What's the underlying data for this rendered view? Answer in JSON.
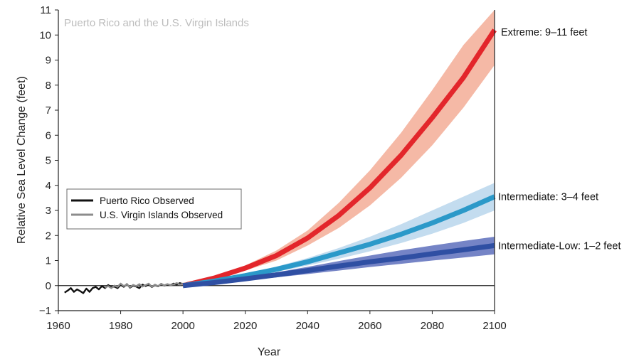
{
  "chart_data": {
    "type": "line",
    "inset_title": "Puerto Rico and the U.S. Virgin Islands",
    "xlabel": "Year",
    "ylabel": "Relative Sea Level Change (feet)",
    "xlim": [
      1960,
      2100
    ],
    "ylim": [
      -1,
      11
    ],
    "x_ticks": [
      1960,
      1980,
      2000,
      2020,
      2040,
      2060,
      2080,
      2100
    ],
    "y_ticks": [
      -1,
      0,
      1,
      2,
      3,
      4,
      5,
      6,
      7,
      8,
      9,
      10,
      11
    ],
    "grid": false,
    "zero_line": true,
    "legend": {
      "position": "left-center",
      "entries": [
        {
          "label": "Puerto Rico Observed",
          "color": "#111111"
        },
        {
          "label": "U.S. Virgin Islands Observed",
          "color": "#8c8c8c"
        }
      ]
    },
    "scenarios": [
      {
        "label": "Extreme: 9–11 feet",
        "line_color": "#e3262b",
        "band_color": "#f5b9a6",
        "x": [
          2000,
          2010,
          2020,
          2030,
          2040,
          2050,
          2060,
          2070,
          2080,
          2090,
          2100
        ],
        "y": [
          0.0,
          0.3,
          0.7,
          1.2,
          1.9,
          2.8,
          3.9,
          5.2,
          6.7,
          8.3,
          10.2
        ],
        "y_low": [
          0.0,
          0.25,
          0.6,
          1.0,
          1.6,
          2.3,
          3.2,
          4.3,
          5.6,
          7.1,
          8.8
        ],
        "y_high": [
          0.0,
          0.35,
          0.8,
          1.4,
          2.2,
          3.3,
          4.6,
          6.1,
          7.8,
          9.6,
          11.0
        ]
      },
      {
        "label": "Intermediate: 3–4 feet",
        "line_color": "#2b99c9",
        "band_color": "#c3dcef",
        "x": [
          2000,
          2010,
          2020,
          2030,
          2040,
          2050,
          2060,
          2070,
          2080,
          2090,
          2100
        ],
        "y": [
          0.0,
          0.18,
          0.4,
          0.65,
          0.95,
          1.3,
          1.65,
          2.05,
          2.5,
          3.0,
          3.55
        ],
        "y_low": [
          0.0,
          0.15,
          0.33,
          0.55,
          0.8,
          1.07,
          1.37,
          1.7,
          2.07,
          2.5,
          3.0
        ],
        "y_high": [
          0.0,
          0.21,
          0.47,
          0.76,
          1.1,
          1.5,
          1.95,
          2.45,
          3.0,
          3.55,
          4.1
        ]
      },
      {
        "label": "Intermediate-Low: 1–2 feet",
        "line_color": "#2f4fa3",
        "band_color": "#7584c6",
        "x": [
          2000,
          2010,
          2020,
          2030,
          2040,
          2050,
          2060,
          2070,
          2080,
          2090,
          2100
        ],
        "y": [
          0.0,
          0.12,
          0.27,
          0.43,
          0.6,
          0.78,
          0.95,
          1.1,
          1.27,
          1.43,
          1.6
        ],
        "y_low": [
          0.0,
          0.09,
          0.2,
          0.33,
          0.46,
          0.6,
          0.74,
          0.87,
          1.0,
          1.12,
          1.25
        ],
        "y_high": [
          0.0,
          0.15,
          0.33,
          0.53,
          0.75,
          0.98,
          1.2,
          1.41,
          1.6,
          1.78,
          1.95
        ]
      }
    ],
    "observed": [
      {
        "name": "Puerto Rico Observed",
        "color": "#111111",
        "x": [
          1962,
          1963,
          1964,
          1965,
          1966,
          1967,
          1968,
          1969,
          1970,
          1971,
          1972,
          1973,
          1974,
          1975,
          1976,
          1977,
          1978,
          1979,
          1980,
          1981,
          1982,
          1983,
          1984,
          1985,
          1986,
          1987,
          1988,
          1989,
          1990,
          1991,
          1992,
          1993,
          1994,
          1995,
          1996,
          1997,
          1998,
          1999,
          2000,
          2001,
          2002,
          2003,
          2004,
          2005,
          2006,
          2007,
          2008,
          2009,
          2010,
          2011,
          2012,
          2013,
          2014,
          2015,
          2016,
          2017
        ],
        "y": [
          -0.28,
          -0.2,
          -0.1,
          -0.25,
          -0.15,
          -0.22,
          -0.3,
          -0.12,
          -0.25,
          -0.1,
          -0.05,
          -0.15,
          -0.02,
          -0.1,
          0.02,
          -0.06,
          -0.04,
          -0.1,
          0.03,
          -0.05,
          0.06,
          -0.08,
          0.0,
          -0.04,
          -0.1,
          0.04,
          -0.02,
          0.05,
          -0.06,
          0.02,
          -0.03,
          0.07,
          0.0,
          0.05,
          0.02,
          0.08,
          0.04,
          0.1,
          0.06,
          0.09,
          0.12,
          0.08,
          0.15,
          0.1,
          0.14,
          0.12,
          0.18,
          0.15,
          0.22,
          0.2,
          0.25,
          0.22,
          0.28,
          0.3,
          0.34,
          0.3
        ]
      },
      {
        "name": "U.S. Virgin Islands Observed",
        "color": "#8c8c8c",
        "x": [
          1975,
          1976,
          1977,
          1978,
          1979,
          1980,
          1981,
          1982,
          1983,
          1984,
          1985,
          1986,
          1987,
          1988,
          1989,
          1990,
          1991,
          1992,
          1993,
          1994,
          1995,
          1996,
          1997,
          1998,
          1999,
          2000,
          2001,
          2002,
          2003,
          2004,
          2005,
          2006,
          2007,
          2008,
          2009,
          2010,
          2011,
          2012,
          2013,
          2014,
          2015,
          2016,
          2017
        ],
        "y": [
          -0.08,
          -0.02,
          -0.1,
          0.0,
          -0.05,
          0.08,
          -0.02,
          0.05,
          -0.06,
          0.03,
          -0.02,
          0.06,
          -0.04,
          0.02,
          0.08,
          -0.05,
          0.04,
          -0.02,
          0.07,
          0.01,
          0.06,
          0.02,
          0.05,
          0.1,
          0.04,
          0.08,
          0.06,
          0.12,
          0.07,
          0.14,
          0.1,
          0.16,
          0.12,
          0.19,
          0.15,
          0.22,
          0.18,
          0.26,
          0.22,
          0.28,
          0.3,
          0.27,
          0.33
        ]
      }
    ]
  }
}
